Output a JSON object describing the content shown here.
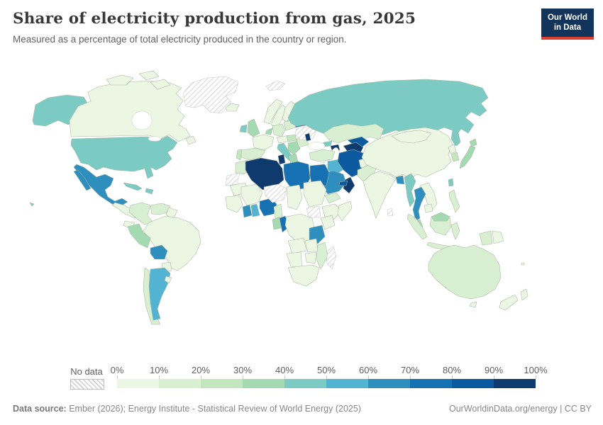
{
  "header": {
    "title": "Share of electricity production from gas, 2025",
    "subtitle": "Measured as a percentage of total electricity produced in the country or region.",
    "logo": {
      "line1": "Our World",
      "line2": "in Data"
    }
  },
  "legend": {
    "no_data_label": "No data",
    "tick_labels": [
      "0%",
      "10%",
      "20%",
      "30%",
      "40%",
      "50%",
      "60%",
      "70%",
      "80%",
      "90%",
      "100%"
    ],
    "palette": [
      "#ecf7e3",
      "#d9efd2",
      "#c4e6bf",
      "#a4dab1",
      "#7bcbc4",
      "#53b3d2",
      "#2e8fbf",
      "#1571b1",
      "#0b5aa0",
      "#0e3a6e"
    ]
  },
  "footer": {
    "source_label": "Data source:",
    "source_text": " Ember (2026); Energy Institute - Statistical Review of World Energy (2025)",
    "credit_text": "OurWorldinData.org/energy | CC BY"
  },
  "chart_data": {
    "type": "choropleth",
    "title": "Share of electricity production from gas, 2025",
    "subtitle": "Measured as a percentage of total electricity produced in the country or region.",
    "unit": "% of total electricity production",
    "year": 2025,
    "legend_buckets": [
      "0-10%",
      "10-20%",
      "20-30%",
      "30-40%",
      "40-50%",
      "50-60%",
      "60-70%",
      "70-80%",
      "80-90%",
      "90-100%"
    ],
    "no_data_label": "No data",
    "regions": {
      "canada": "0-10%",
      "alaska": "40-50%",
      "usa": "40-50%",
      "hawaii": "40-50%",
      "mexico": "60-70%",
      "centralamerica": "0-10%",
      "cuba": "40-50%",
      "hispaniola": "40-50%",
      "trinidad": "90-100%",
      "greenland": "no-data",
      "iceland": "0-10%",
      "svalbard": "no-data",
      "colombia": "10-20%",
      "venezuela": "10-20%",
      "guyanas": "0-10%",
      "ecuador": "0-10%",
      "peru": "30-40%",
      "brazil": "0-10%",
      "bolivia": "60-70%",
      "paraguay": "0-10%",
      "uruguay": "0-10%",
      "chile": "10-20%",
      "argentina": "50-60%",
      "norway": "0-10%",
      "sweden": "0-10%",
      "finland": "0-10%",
      "baltics": "10-20%",
      "uk": "30-40%",
      "ireland": "40-50%",
      "france": "0-10%",
      "spain": "10-20%",
      "portugal": "20-30%",
      "germany": "10-20%",
      "lowcountries": "30-40%",
      "poland": "10-20%",
      "centraleurope": "0-10%",
      "italy": "40-50%",
      "balkans": "30-40%",
      "greece": "30-40%",
      "hungary": "20-30%",
      "romania": "10-20%",
      "belarus": "60-70%",
      "ukraine": "no-data",
      "moldova": "90-100%",
      "russia": "40-50%",
      "sakhalin": "40-50%",
      "kazakhstan": "10-20%",
      "turkey": "10-20%",
      "georgia": "40-50%",
      "azerbaijan": "90-100%",
      "syria": "no-data",
      "iraq": "50-60%",
      "jordanisrael": "50-60%",
      "saudiarabia": "60-70%",
      "yemen": "10-20%",
      "oman": "90-100%",
      "uae": "80-90%",
      "iran": "80-90%",
      "turkmenistan": "90-100%",
      "uzbekistan": "80-90%",
      "afghanistan": "0-10%",
      "pakistan": "10-20%",
      "india": "0-10%",
      "srilanka": "no-data",
      "bangladesh": "60-70%",
      "myanmar": "40-50%",
      "thailand": "60-70%",
      "vietnam": "0-10%",
      "cambodia": "0-10%",
      "malaysia": "30-40%",
      "singapore": "90-100%",
      "malaysiaborneo": "30-40%",
      "china": "0-10%",
      "mongolia": "0-10%",
      "northkorea": "0-10%",
      "southkorea": "20-30%",
      "japan": "30-40%",
      "hokkaido": "30-40%",
      "taiwan": "40-50%",
      "philippines": "10-20%",
      "sumatra": "10-20%",
      "java": "10-20%",
      "borneo": "10-20%",
      "sulawesi": "10-20%",
      "westpapua": "10-20%",
      "papuanewguinea": "0-10%",
      "australia": "10-20%",
      "tasmania": "0-10%",
      "newzealandnorth": "0-10%",
      "newzealandsouth": "0-10%",
      "fiji": "0-10%",
      "morocco": "10-20%",
      "westernsahara": "no-data",
      "mauritania": "0-10%",
      "mali": "0-10%",
      "westafrica": "0-10%",
      "ivorycoast": "60-70%",
      "ghana": "50-60%",
      "nigeria": "70-80%",
      "cameroon": "10-20%",
      "algeria": "90-100%",
      "tunisia": "90-100%",
      "libya": "70-80%",
      "egypt": "70-80%",
      "niger": "no-data",
      "chad": "0-10%",
      "sudan": "0-10%",
      "southsudan": "no-data",
      "ethiopia": "0-10%",
      "somalia": "0-10%",
      "kenya": "0-10%",
      "gabon": "30-40%",
      "congo": "70-80%",
      "drc": "0-10%",
      "tanzania": "60-70%",
      "angola": "0-10%",
      "zambia": "0-10%",
      "mozambique": "10-20%",
      "zimbabwe": "0-10%",
      "namibia": "0-10%",
      "southafrica": "0-10%",
      "madagascar": "no-data"
    }
  }
}
